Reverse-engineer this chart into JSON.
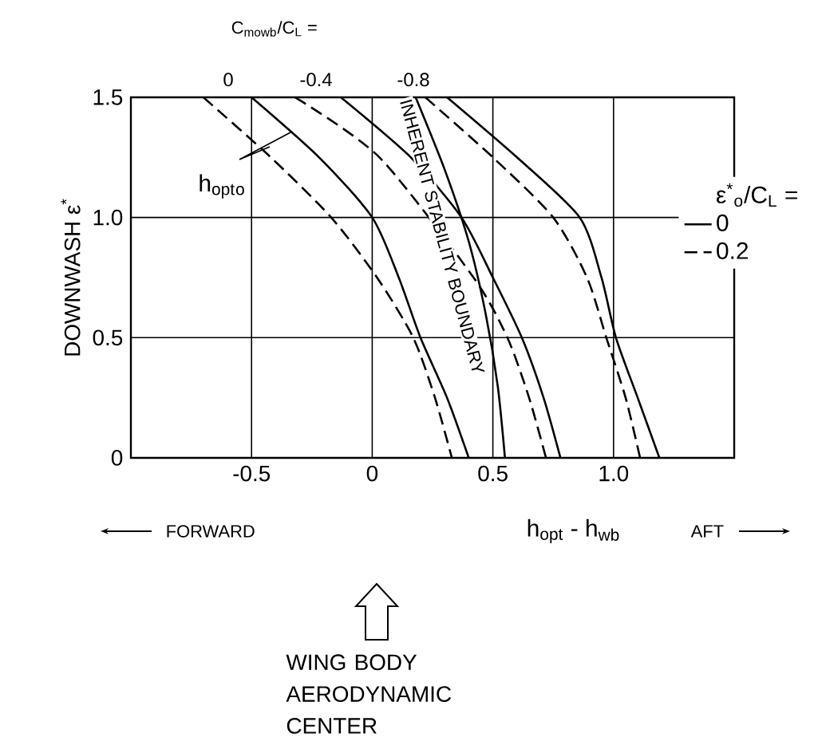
{
  "chart_data": {
    "type": "line",
    "ylabel": "DOWNWASH ε$^{*}$",
    "xlabel": "h$_{opt}$ - h$_{wb}$",
    "legend_title": "ε$^{*}$$_{o}$/C$_{L}$ =",
    "xlim": [
      -1,
      1.5
    ],
    "ylim": [
      0,
      1.5
    ],
    "xticks": [
      -0.5,
      0,
      0.5,
      {
        "value": 1,
        "label": "1.0"
      }
    ],
    "yticks": [
      0,
      0.5,
      {
        "value": 1,
        "label": "1.0"
      },
      1.5
    ],
    "grid": true,
    "legend": "right",
    "series": [
      {
        "name": "0",
        "color": "#000000",
        "line_style": "solid",
        "x": [
          -0.5,
          -0.22,
          0,
          0.11,
          0.2,
          0.31,
          0.4
        ],
        "values": [
          1.5,
          1.25,
          1.0,
          0.75,
          0.5,
          0.25,
          0
        ]
      },
      {
        "name": "0.2",
        "color": "#000000",
        "line_style": "dashed",
        "x": [
          -0.7,
          -0.42,
          -0.17,
          0.02,
          0.17,
          0.26,
          0.33
        ],
        "values": [
          1.5,
          1.25,
          1.0,
          0.75,
          0.5,
          0.25,
          0
        ]
      },
      {
        "color": "#000000",
        "line_style": "solid",
        "x": [
          -0.13,
          0.16,
          0.37,
          0.5,
          0.62,
          0.71,
          0.78
        ],
        "values": [
          1.5,
          1.25,
          1.0,
          0.75,
          0.5,
          0.25,
          0
        ]
      },
      {
        "color": "#000000",
        "line_style": "dashed",
        "x": [
          -0.32,
          0.03,
          0.25,
          0.42,
          0.56,
          0.65,
          0.72
        ],
        "values": [
          1.5,
          1.25,
          null,
          0.75,
          0.5,
          0.25,
          0
        ]
      },
      {
        "color": "#000000",
        "line_style": "solid",
        "x": [
          0.31,
          0.6,
          0.86,
          0.95,
          1.01,
          1.1,
          1.19
        ],
        "values": [
          1.5,
          1.25,
          1.0,
          0.75,
          0.5,
          0.25,
          0
        ]
      },
      {
        "color": "#000000",
        "line_style": "dashed",
        "x": [
          0.22,
          0.5,
          0.75,
          0.89,
          0.97,
          1.05,
          1.11
        ],
        "values": [
          1.5,
          1.25,
          1.0,
          0.75,
          0.5,
          0.25,
          0
        ]
      },
      {
        "name": "INHERENT STABILITY BOUNDARY",
        "color": "#000000",
        "line_style": "solid",
        "x": [
          0.18,
          0.3,
          0.4,
          0.47,
          0.52,
          0.55
        ],
        "values": [
          1.5,
          1.2,
          0.9,
          0.6,
          0.3,
          0
        ]
      }
    ],
    "annotations": [
      "C$_{mowb}$/C$_{L}$ =",
      "0",
      "-0.4",
      "-0.8",
      "h$_{opt}$$_{o}$",
      "FORWARD",
      "AFT",
      "WING BODY AERODYNAMIC CENTER"
    ]
  }
}
